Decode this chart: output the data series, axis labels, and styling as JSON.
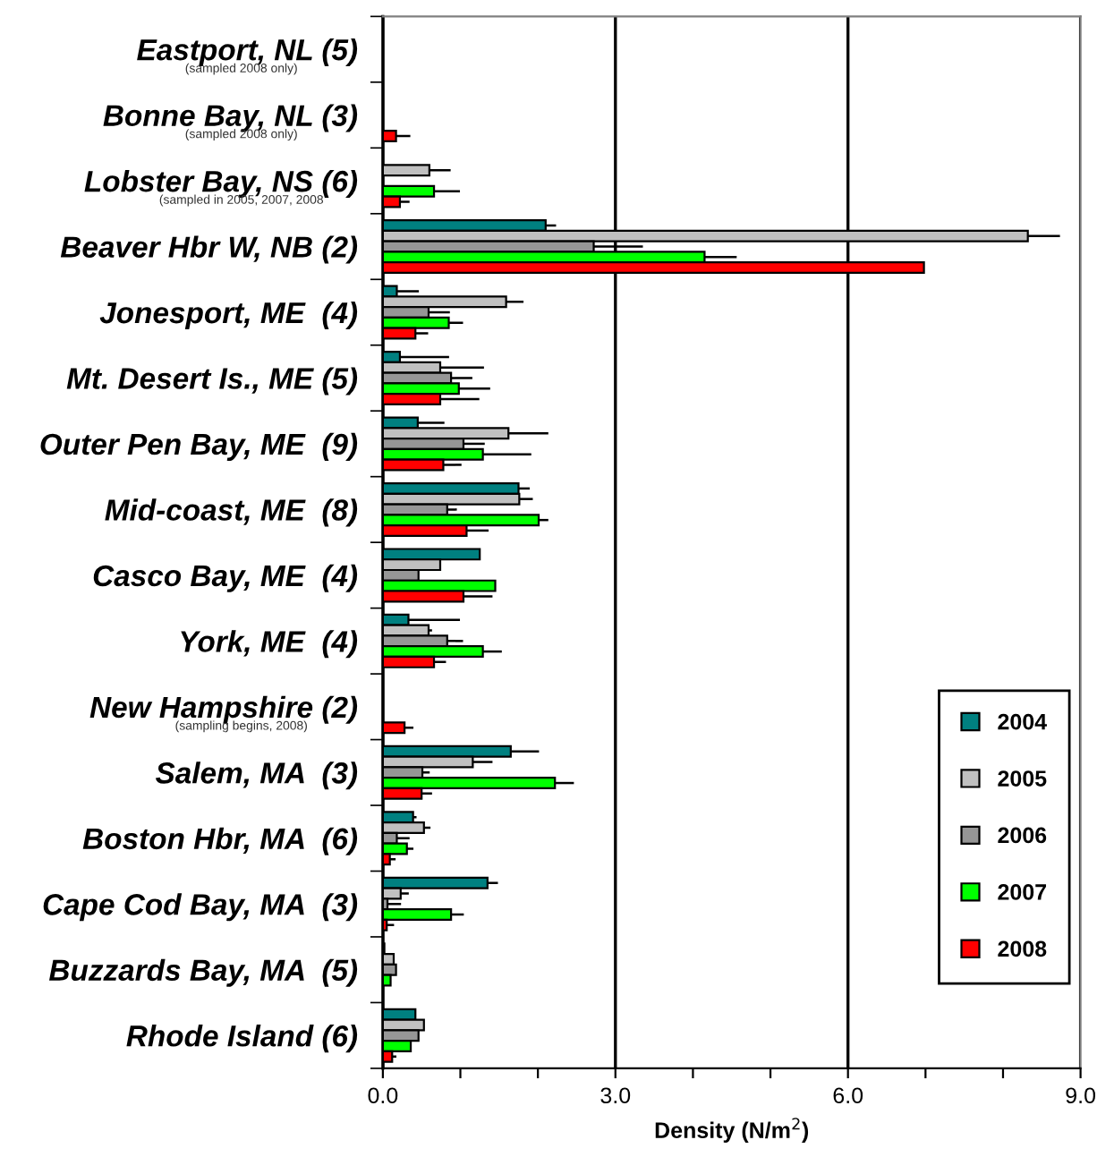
{
  "chart_data": {
    "type": "bar",
    "orientation": "horizontal",
    "categories": [
      "Eastport, NL (5)",
      "Bonne Bay, NL (3)",
      "Lobster Bay, NS (6)",
      "Beaver Hbr W, NB (2)",
      "Jonesport, ME  (4)",
      "Mt. Desert Is., ME (5)",
      "Outer Pen Bay, ME  (9)",
      "Mid-coast, ME  (8)",
      "Casco Bay, ME  (4)",
      "York, ME  (4)",
      "New Hampshire (2)",
      "Salem, MA  (3)",
      "Boston Hbr, MA  (6)",
      "Cape Cod Bay, MA  (3)",
      "Buzzards Bay, MA  (5)",
      "Rhode Island (6)"
    ],
    "series": [
      {
        "name": "2004",
        "color": "#008080",
        "values": [
          null,
          null,
          null,
          2.1,
          0.18,
          0.22,
          0.45,
          1.75,
          1.25,
          0.33,
          null,
          1.65,
          0.39,
          1.35,
          0.02,
          0.42
        ],
        "errors": [
          null,
          null,
          null,
          [
            2.1,
            2.22
          ],
          [
            0.18,
            0.45
          ],
          [
            0.22,
            0.84
          ],
          [
            0.45,
            0.78
          ],
          [
            1.75,
            1.88
          ],
          null,
          [
            0.33,
            0.98
          ],
          null,
          [
            1.65,
            2.0
          ],
          [
            0.39,
            0.42
          ],
          [
            1.35,
            1.47
          ],
          null,
          null
        ]
      },
      {
        "name": "2005",
        "color": "#c0c0c0",
        "values": [
          null,
          null,
          0.6,
          8.32,
          1.59,
          0.74,
          1.62,
          1.76,
          0.74,
          0.59,
          null,
          1.16,
          0.53,
          0.23,
          0.14,
          0.53
        ],
        "errors": [
          null,
          null,
          [
            0.6,
            0.86
          ],
          [
            8.32,
            8.72
          ],
          [
            1.59,
            1.8
          ],
          [
            0.74,
            1.29
          ],
          [
            1.62,
            2.12
          ],
          [
            1.76,
            1.92
          ],
          null,
          [
            0.59,
            0.62
          ],
          null,
          [
            1.16,
            1.4
          ],
          [
            0.53,
            0.6
          ],
          [
            0.23,
            0.32
          ],
          null,
          null
        ]
      },
      {
        "name": "2006",
        "color": "#969696",
        "values": [
          null,
          null,
          null,
          2.72,
          0.59,
          0.88,
          1.04,
          0.83,
          0.46,
          0.83,
          null,
          0.51,
          0.18,
          0.06,
          0.17,
          0.46
        ],
        "errors": [
          null,
          null,
          null,
          [
            2.72,
            3.34
          ],
          [
            0.59,
            0.85
          ],
          [
            0.88,
            1.14
          ],
          [
            1.04,
            1.3
          ],
          [
            0.83,
            0.94
          ],
          null,
          [
            0.83,
            1.02
          ],
          null,
          [
            0.51,
            0.59
          ],
          [
            0.18,
            0.33
          ],
          [
            0.06,
            0.22
          ],
          null,
          null
        ]
      },
      {
        "name": "2007",
        "color": "#00ff00",
        "values": [
          null,
          null,
          0.66,
          4.15,
          0.85,
          0.98,
          1.29,
          2.01,
          1.45,
          1.29,
          null,
          2.22,
          0.31,
          0.88,
          0.1,
          0.36
        ],
        "errors": [
          null,
          null,
          [
            0.66,
            0.98
          ],
          [
            4.15,
            4.55
          ],
          [
            0.85,
            1.02
          ],
          [
            0.98,
            1.37
          ],
          [
            1.29,
            1.9
          ],
          [
            2.01,
            2.12
          ],
          null,
          [
            1.29,
            1.52
          ],
          null,
          [
            2.22,
            2.45
          ],
          [
            0.31,
            0.38
          ],
          [
            0.88,
            1.03
          ],
          null,
          null
        ]
      },
      {
        "name": "2008",
        "color": "#ff0000",
        "values": [
          null,
          0.17,
          0.22,
          6.98,
          0.42,
          0.74,
          0.78,
          1.08,
          1.04,
          0.66,
          0.28,
          0.5,
          0.09,
          0.05,
          null,
          0.12
        ],
        "errors": [
          null,
          [
            0.17,
            0.34
          ],
          [
            0.22,
            0.33
          ],
          null,
          [
            0.42,
            0.57
          ],
          [
            0.74,
            1.23
          ],
          [
            0.78,
            1.0
          ],
          [
            1.08,
            1.35
          ],
          [
            1.04,
            1.4
          ],
          [
            0.66,
            0.8
          ],
          [
            0.28,
            0.38
          ],
          [
            0.5,
            0.62
          ],
          [
            0.09,
            0.15
          ],
          [
            0.05,
            0.13
          ],
          null,
          [
            0.12,
            0.16
          ]
        ]
      }
    ],
    "xlabel": "Density (N/m$^{2}$)",
    "xlim": [
      0,
      9
    ],
    "xticks": [
      {
        "value": 0,
        "label": "0.0"
      },
      {
        "value": 1,
        "label": null
      },
      {
        "value": 2,
        "label": null
      },
      {
        "value": 3,
        "label": "3.0"
      },
      {
        "value": 4,
        "label": null
      },
      {
        "value": 5,
        "label": null
      },
      {
        "value": 6,
        "label": "6.0"
      },
      {
        "value": 7,
        "label": null
      },
      {
        "value": 8,
        "label": null
      },
      {
        "value": 9,
        "label": "9.0"
      }
    ],
    "grid": "x",
    "legend": "bottom right",
    "annotations": [
      "(sampled 2008 only)",
      "(sampled 2008 only)",
      "(sampled in 2005, 2007, 2008",
      "(sampling begins, 2008)"
    ]
  }
}
